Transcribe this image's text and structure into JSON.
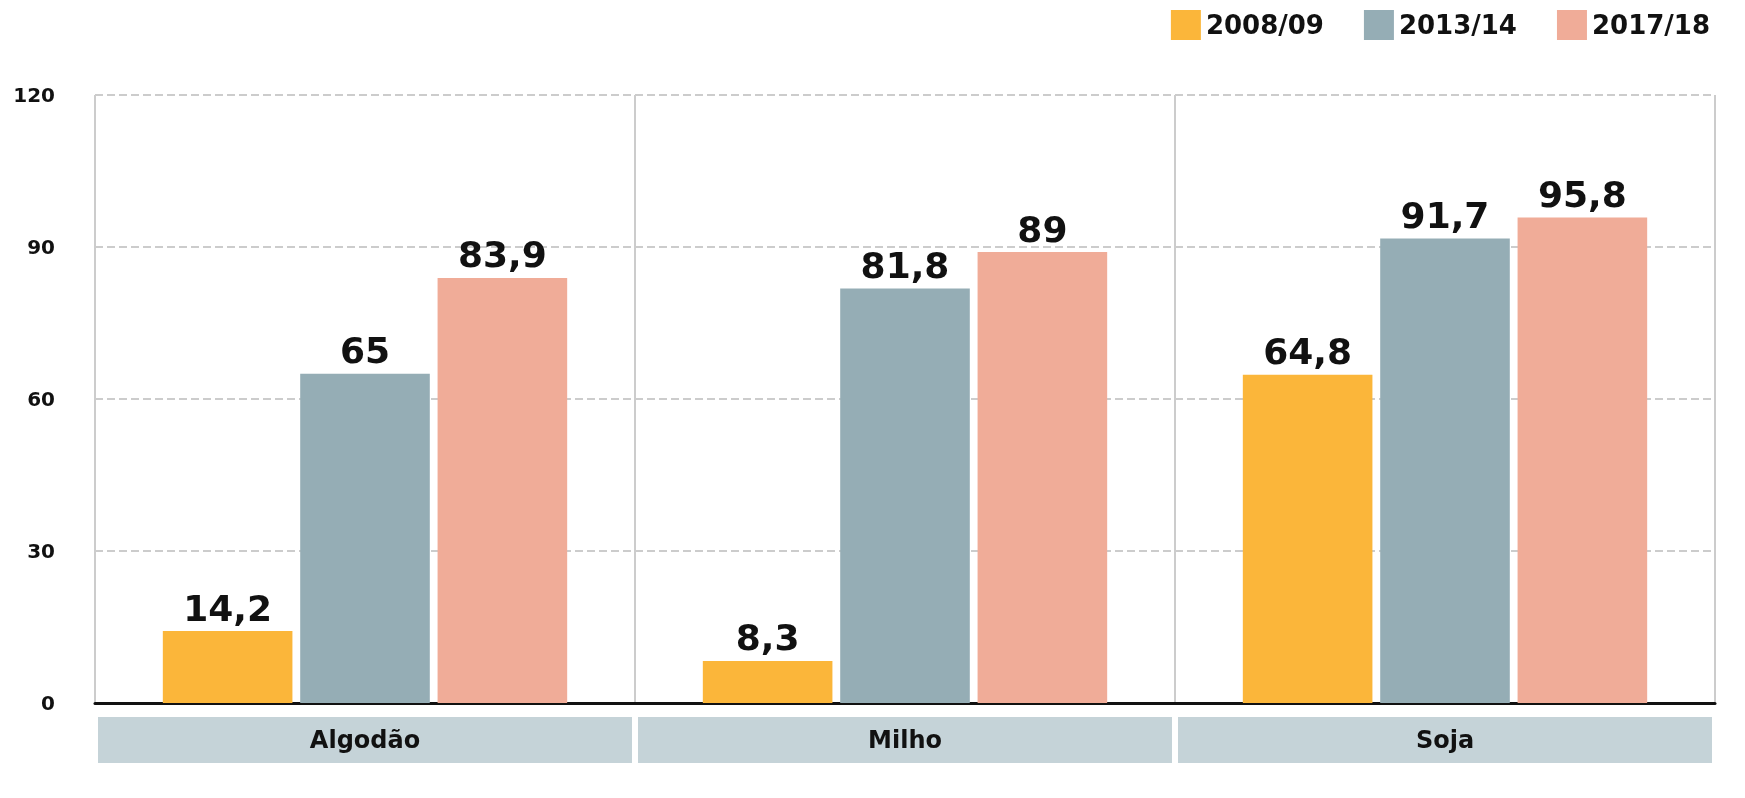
{
  "chart_data": {
    "type": "bar",
    "categories": [
      "Algodão",
      "Milho",
      "Soja"
    ],
    "series": [
      {
        "name": "2008/09",
        "color": "#fbb63a",
        "values": [
          14.2,
          8.3,
          64.8
        ],
        "value_labels": [
          "14,2",
          "8,3",
          "64,8"
        ]
      },
      {
        "name": "2013/14",
        "color": "#95adb5",
        "values": [
          65,
          81.8,
          91.7
        ],
        "value_labels": [
          "65",
          "81,8",
          "91,7"
        ]
      },
      {
        "name": "2017/18",
        "color": "#f0ac98",
        "values": [
          83.9,
          89,
          95.8
        ],
        "value_labels": [
          "83,9",
          "89",
          "95,8"
        ]
      }
    ],
    "ylim": [
      0,
      120
    ],
    "yticks": [
      0,
      30,
      60,
      90,
      120
    ],
    "grid": "y",
    "legend": "top right"
  }
}
